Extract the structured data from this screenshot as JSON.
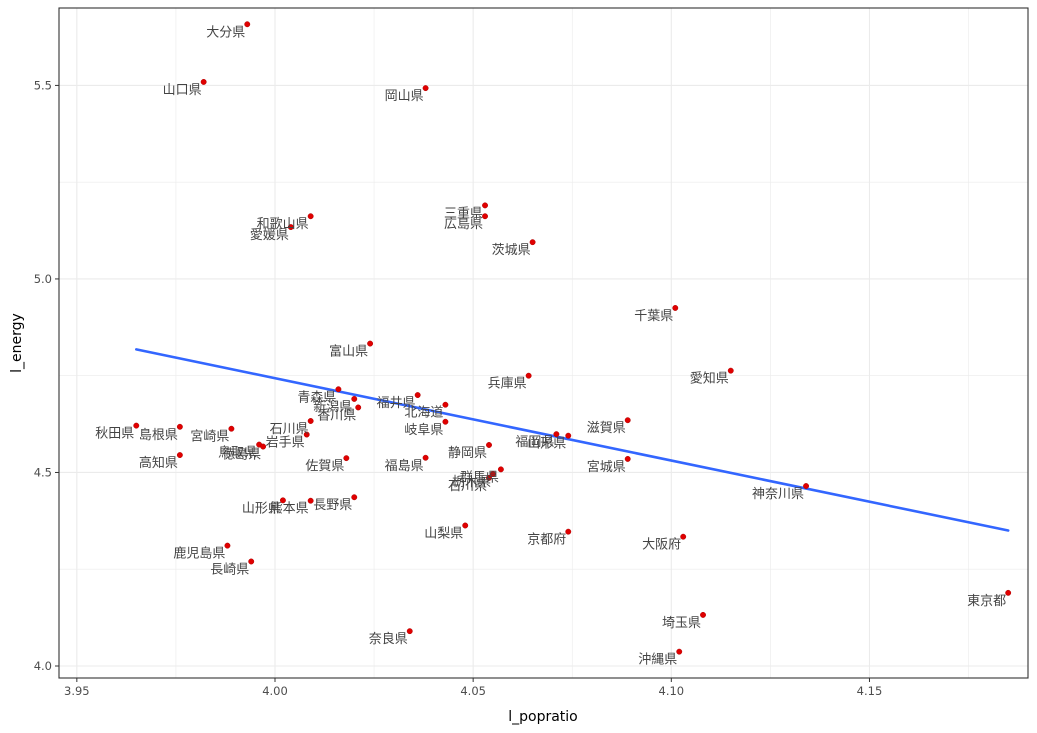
{
  "chart_data": {
    "type": "scatter",
    "title": "",
    "xlabel": "l_popratio",
    "ylabel": "l_energy",
    "xlim": [
      3.9455,
      4.19
    ],
    "ylim": [
      3.969,
      5.7
    ],
    "x_ticks": [
      "3.95",
      "4.00",
      "4.05",
      "4.10",
      "4.15"
    ],
    "y_ticks": [
      "4.0",
      "4.5",
      "5.0",
      "5.5"
    ],
    "x_tick_values": [
      3.95,
      4.0,
      4.05,
      4.1,
      4.15
    ],
    "y_tick_values": [
      4.0,
      4.5,
      5.0,
      5.5
    ],
    "grid": true,
    "colors": {
      "point": "#e00000",
      "trend": "#3366ff",
      "grid": "#ebebeb",
      "panel_border": "#333333"
    },
    "trend_line": {
      "type": "linear",
      "x": [
        3.965,
        4.185
      ],
      "y": [
        4.818,
        4.35
      ]
    },
    "points": [
      {
        "label": "大分県",
        "x": 3.993,
        "y": 5.658
      },
      {
        "label": "山口県",
        "x": 3.982,
        "y": 5.509
      },
      {
        "label": "岡山県",
        "x": 4.038,
        "y": 5.493
      },
      {
        "label": "三重県",
        "x": 4.053,
        "y": 5.19
      },
      {
        "label": "広島県",
        "x": 4.053,
        "y": 5.162
      },
      {
        "label": "和歌山県",
        "x": 4.009,
        "y": 5.162
      },
      {
        "label": "愛媛県",
        "x": 4.004,
        "y": 5.134
      },
      {
        "label": "茨城県",
        "x": 4.065,
        "y": 5.095
      },
      {
        "label": "千葉県",
        "x": 4.101,
        "y": 4.925
      },
      {
        "label": "富山県",
        "x": 4.024,
        "y": 4.833
      },
      {
        "label": "愛知県",
        "x": 4.115,
        "y": 4.763
      },
      {
        "label": "兵庫県",
        "x": 4.064,
        "y": 4.75
      },
      {
        "label": "青森県",
        "x": 4.016,
        "y": 4.715
      },
      {
        "label": "福井県",
        "x": 4.036,
        "y": 4.7
      },
      {
        "label": "新潟県",
        "x": 4.02,
        "y": 4.69
      },
      {
        "label": "香川県",
        "x": 4.021,
        "y": 4.668
      },
      {
        "label": "北海道",
        "x": 4.043,
        "y": 4.675
      },
      {
        "label": "石川県",
        "x": 4.009,
        "y": 4.633
      },
      {
        "label": "岐阜県",
        "x": 4.043,
        "y": 4.631
      },
      {
        "label": "秋田県",
        "x": 3.965,
        "y": 4.621
      },
      {
        "label": "島根県",
        "x": 3.976,
        "y": 4.618
      },
      {
        "label": "宮崎県",
        "x": 3.989,
        "y": 4.613
      },
      {
        "label": "滋賀県",
        "x": 4.089,
        "y": 4.635
      },
      {
        "label": "岩手県",
        "x": 4.008,
        "y": 4.598
      },
      {
        "label": "福岡県",
        "x": 4.071,
        "y": 4.599
      },
      {
        "label": "山形県",
        "x": 4.074,
        "y": 4.595
      },
      {
        "label": "鳥取県",
        "x": 3.996,
        "y": 4.572
      },
      {
        "label": "静岡県",
        "x": 4.054,
        "y": 4.571
      },
      {
        "label": "徳島県",
        "x": 3.997,
        "y": 4.567
      },
      {
        "label": "高知県",
        "x": 3.976,
        "y": 4.545
      },
      {
        "label": "佐賀県",
        "x": 4.018,
        "y": 4.537
      },
      {
        "label": "福島県",
        "x": 4.038,
        "y": 4.538
      },
      {
        "label": "宮城県",
        "x": 4.089,
        "y": 4.535
      },
      {
        "label": "群馬県",
        "x": 4.057,
        "y": 4.508
      },
      {
        "label": "栃木県",
        "x": 4.055,
        "y": 4.496
      },
      {
        "label": "石川県",
        "x": 4.054,
        "y": 4.486
      },
      {
        "label": "神奈川県",
        "x": 4.134,
        "y": 4.465
      },
      {
        "label": "長野県",
        "x": 4.02,
        "y": 4.436
      },
      {
        "label": "熊本県",
        "x": 4.009,
        "y": 4.427
      },
      {
        "label": "山形県",
        "x": 4.002,
        "y": 4.428
      },
      {
        "label": "山梨県",
        "x": 4.048,
        "y": 4.363
      },
      {
        "label": "京都府",
        "x": 4.074,
        "y": 4.347
      },
      {
        "label": "大阪府",
        "x": 4.103,
        "y": 4.334
      },
      {
        "label": "鹿児島県",
        "x": 3.988,
        "y": 4.311
      },
      {
        "label": "長崎県",
        "x": 3.994,
        "y": 4.27
      },
      {
        "label": "東京都",
        "x": 4.185,
        "y": 4.189
      },
      {
        "label": "埼玉県",
        "x": 4.108,
        "y": 4.132
      },
      {
        "label": "奈良県",
        "x": 4.034,
        "y": 4.09
      },
      {
        "label": "沖縄県",
        "x": 4.102,
        "y": 4.037
      }
    ]
  }
}
